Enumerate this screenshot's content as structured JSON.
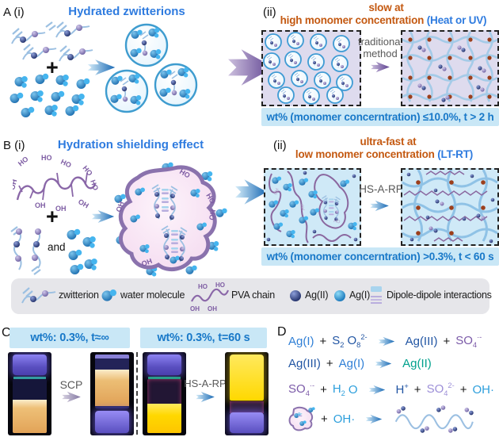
{
  "colors": {
    "blue": "#2f7fd6",
    "navy": "#2155a3",
    "purple": "#7b5aa8",
    "teal": "#00a18d",
    "cyan": "#2d9fdc",
    "lavender": "#9d8fd8",
    "dark": "#1a1a1a",
    "title_blue": "#2e7bdf",
    "orange": "#c45911",
    "banner_bg": "#c9e7f6",
    "banner_text": "#1878c8"
  },
  "panelA": {
    "label_i": "A (i)",
    "title_i": "Hydrated zwitterions",
    "plus": "+",
    "label_ii": "(ii)",
    "title_ii_line1": "slow at",
    "title_ii_line2_orange": "high monomer concentration ",
    "title_ii_line2_blue": "(Heat or UV)",
    "method_line1": "traditional",
    "method_line2": "method",
    "banner": "wt% (monomer concerntration) ≤10.0%, t > 2 h"
  },
  "panelB": {
    "label_i": "B (i)",
    "title_i": "Hydration shielding effect",
    "plus": "+",
    "and_label": "and",
    "ho": "HO",
    "oh": "OH",
    "label_ii": "(ii)",
    "title_ii_line1": "ultra-fast at",
    "title_ii_line2_orange": "low monomer concentration ",
    "title_ii_line2_blue": "(LT-RT)",
    "method_label": "HS-A-RP",
    "banner": "wt% (monomer concerntration) >0.3%, t < 60 s"
  },
  "legend": {
    "zwitterion": "zwitterion",
    "water": "water molecule",
    "pva": "PVA chain",
    "ag2": "Ag(II)",
    "ag1": "Ag(I)",
    "dipole": "Dipole-dipole interactions",
    "ho": "HO",
    "oh": "OH"
  },
  "panelC": {
    "label": "C",
    "banner_left": "wt%: 0.3%,  t≈∞",
    "banner_right": "wt%: 0.3%,  t=60 s",
    "arrow1_label": "SCP",
    "arrow2_label": "HS-A-RP"
  },
  "panelD": {
    "label": "D",
    "equations": [
      {
        "tokens": [
          {
            "t": "Ag(I)",
            "c": "blue"
          },
          {
            "t": "+",
            "c": "dark"
          },
          {
            "t": "S",
            "c": "navy",
            "sub": "2"
          },
          {
            "t": "O",
            "c": "navy",
            "sub": "8",
            "sup": "2-"
          },
          {
            "arrow": true
          },
          {
            "t": "Ag(III)",
            "c": "navy"
          },
          {
            "t": "+",
            "c": "dark"
          },
          {
            "t": "SO",
            "c": "purple",
            "sub": "4",
            "sup": "·-"
          }
        ]
      },
      {
        "tokens": [
          {
            "t": "Ag(III)",
            "c": "navy"
          },
          {
            "t": "+",
            "c": "dark"
          },
          {
            "t": "Ag(I)",
            "c": "blue"
          },
          {
            "arrow": true
          },
          {
            "t": "Ag(II)",
            "c": "teal"
          }
        ]
      },
      {
        "tokens": [
          {
            "t": "SO",
            "c": "purple",
            "sub": "4",
            "sup": "·-"
          },
          {
            "t": "+",
            "c": "dark"
          },
          {
            "t": "H",
            "c": "cyan",
            "sub": "2"
          },
          {
            "t": "O",
            "c": "cyan"
          },
          {
            "arrow": true
          },
          {
            "t": "H",
            "c": "navy",
            "sup": "+"
          },
          {
            "t": "+",
            "c": "dark"
          },
          {
            "t": "SO",
            "c": "lavender",
            "sub": "4",
            "sup": "2-"
          },
          {
            "t": "+",
            "c": "dark"
          },
          {
            "t": "OH·",
            "c": "cyan"
          }
        ]
      },
      {
        "tokens": [
          {
            "icon": "monomer-blob"
          },
          {
            "t": "+",
            "c": "dark"
          },
          {
            "t": "OH·",
            "c": "cyan"
          },
          {
            "arrow": true
          },
          {
            "icon": "polymer-chain"
          }
        ]
      }
    ]
  }
}
